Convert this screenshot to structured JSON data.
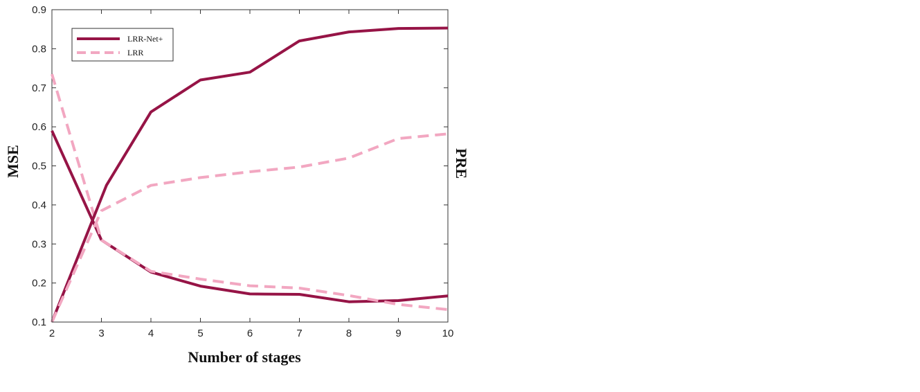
{
  "chart_data": {
    "type": "line",
    "xlabel": "Number of stages",
    "ylabel": "MSE",
    "ylabel_right": "PRE",
    "xlim": [
      2,
      10
    ],
    "ylim": [
      0.1,
      0.9
    ],
    "xticks": [
      "2",
      "3",
      "4",
      "5",
      "6",
      "7",
      "8",
      "9",
      "10"
    ],
    "yticks": [
      "0.1",
      "0.2",
      "0.3",
      "0.4",
      "0.5",
      "0.6",
      "0.7",
      "0.8",
      "0.9"
    ],
    "grid": false,
    "legend_position": "top-left",
    "legend": [
      {
        "label": "LRR-Net+",
        "color": "#961446",
        "style": "solid"
      },
      {
        "label": "LRR",
        "color": "#f2a7c1",
        "style": "dashed"
      }
    ],
    "series": [
      {
        "name": "LRR-Net+",
        "metric": "MSE",
        "color": "#961446",
        "style": "solid",
        "x": [
          2,
          3,
          4,
          5,
          6,
          7,
          8,
          9,
          10
        ],
        "values": [
          0.59,
          0.31,
          0.228,
          0.192,
          0.172,
          0.171,
          0.152,
          0.155,
          0.167
        ]
      },
      {
        "name": "LRR",
        "metric": "MSE",
        "color": "#f2a7c1",
        "style": "dashed",
        "x": [
          2,
          3,
          4,
          5,
          6,
          7,
          8,
          9,
          10
        ],
        "values": [
          0.735,
          0.31,
          0.23,
          0.21,
          0.193,
          0.187,
          0.168,
          0.145,
          0.132
        ]
      },
      {
        "name": "LRR-Net+",
        "metric": "PRE",
        "color": "#961446",
        "style": "solid",
        "x": [
          2,
          3.1,
          4,
          5,
          6,
          7,
          8,
          9,
          10
        ],
        "values": [
          0.1,
          0.45,
          0.638,
          0.72,
          0.74,
          0.82,
          0.843,
          0.852,
          0.853
        ]
      },
      {
        "name": "LRR",
        "metric": "PRE",
        "color": "#f2a7c1",
        "style": "dashed",
        "x": [
          2,
          3,
          4,
          5,
          6,
          7,
          8,
          9,
          10
        ],
        "values": [
          0.1,
          0.385,
          0.45,
          0.47,
          0.485,
          0.497,
          0.52,
          0.57,
          0.582
        ]
      }
    ]
  }
}
